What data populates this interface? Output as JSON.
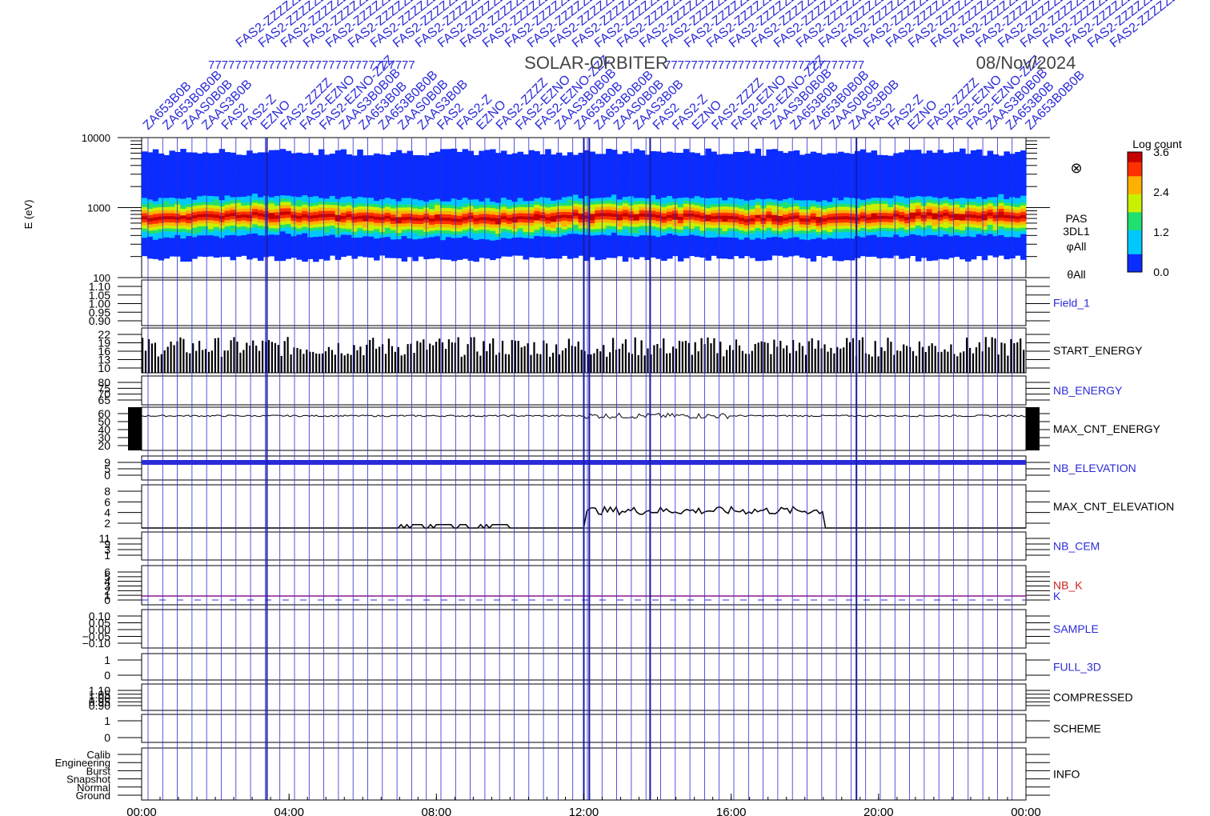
{
  "header": {
    "mission": "SOLAR-ORBITER",
    "date": "08/Nov/2024",
    "slanted_labels": [
      "ZA653B0B",
      "ZA653B0B0B",
      "ZAAS0B0B",
      "ZAAS3B0B",
      "FAS2",
      "FAS2-Z",
      "EZNO",
      "FAS2-ZZZZ",
      "FAS2-EZNO",
      "FAS2-EZNO-ZZZ",
      "ZAAS3B0B0B"
    ]
  },
  "chart_data": [
    {
      "type": "heatmap",
      "panel": "spectrogram",
      "ylabel": "E (eV)",
      "yscale": "log",
      "ylim": [
        100,
        10000
      ],
      "yticks": [
        "10000",
        "1000",
        "100"
      ],
      "right_labels": [
        "PAS",
        "3DL1",
        "φAll",
        "θAll"
      ],
      "colorbar": {
        "title": "Log count",
        "ticks": [
          "3.6",
          "2.4",
          "1.2",
          "0.0"
        ],
        "range": [
          0.0,
          3.6
        ]
      },
      "peak_energy_hours": [
        0,
        2,
        4,
        6,
        8,
        10,
        12,
        14,
        16,
        18,
        20,
        22,
        24
      ],
      "peak_energy_ev": [
        720,
        760,
        800,
        720,
        700,
        680,
        780,
        760,
        720,
        700,
        740,
        780,
        760
      ]
    },
    {
      "type": "line",
      "name": "Field_1",
      "yticks": [
        "1.10",
        "1.05",
        "1.00",
        "0.95",
        "0.90"
      ],
      "ylim": [
        0.9,
        1.1
      ]
    },
    {
      "type": "bar",
      "name": "START_ENERGY",
      "yticks": [
        "22",
        "19",
        "16",
        "13",
        "10"
      ],
      "ylim": [
        10,
        22
      ]
    },
    {
      "type": "line",
      "name": "NB_ENERGY",
      "yticks": [
        "80",
        "75",
        "70",
        "65"
      ],
      "ylim": [
        65,
        80
      ]
    },
    {
      "type": "line",
      "name": "MAX_CNT_ENERGY",
      "yticks": [
        "60",
        "50",
        "40",
        "30",
        "20"
      ],
      "ylim": [
        20,
        60
      ],
      "typical_value": 52
    },
    {
      "type": "line",
      "name": "NB_ELEVATION",
      "yticks": [
        "9",
        "5",
        "0"
      ],
      "ylim": [
        0,
        9
      ],
      "value": 9
    },
    {
      "type": "line",
      "name": "MAX_CNT_ELEVATION",
      "yticks": [
        "8",
        "6",
        "4",
        "2"
      ],
      "ylim": [
        2,
        8
      ]
    },
    {
      "type": "line",
      "name": "NB_CEM",
      "yticks": [
        "11",
        "9",
        "3",
        "1"
      ],
      "ylim": [
        1,
        11
      ]
    },
    {
      "type": "line",
      "name": "NB_K",
      "yticks": [
        "6",
        "5",
        "4",
        "3",
        "2",
        "1",
        "0"
      ],
      "ylim": [
        0,
        6
      ],
      "second_name": "K",
      "k_value": 1
    },
    {
      "type": "line",
      "name": "SAMPLE",
      "yticks": [
        "0.10",
        "0.05",
        "0.00",
        "−0.05",
        "−0.10"
      ],
      "ylim": [
        -0.1,
        0.1
      ]
    },
    {
      "type": "line",
      "name": "FULL_3D",
      "yticks": [
        "1",
        "0"
      ],
      "ylim": [
        0,
        1
      ]
    },
    {
      "type": "line",
      "name": "COMPRESSED",
      "yticks": [
        "1.10",
        "1.05",
        "1.00",
        "0.95",
        "0.90"
      ],
      "ylim": [
        0.9,
        1.1
      ]
    },
    {
      "type": "line",
      "name": "SCHEME",
      "yticks": [
        "1",
        "0"
      ],
      "ylim": [
        0,
        1
      ]
    },
    {
      "type": "line",
      "name": "INFO",
      "yticks": [
        "Calib",
        "Engineering",
        "Burst",
        "Snapshot",
        "Normal",
        "Ground"
      ]
    }
  ],
  "xaxis": {
    "ticks": [
      "00:00",
      "04:00",
      "08:00",
      "12:00",
      "16:00",
      "20:00",
      "00:00"
    ],
    "range_hours": [
      0,
      24
    ]
  },
  "colors": {
    "blue": "#2b2bd8",
    "dark_blue": "#1a1aa8",
    "red": "#d02020",
    "purple": "#8a1a8a"
  }
}
